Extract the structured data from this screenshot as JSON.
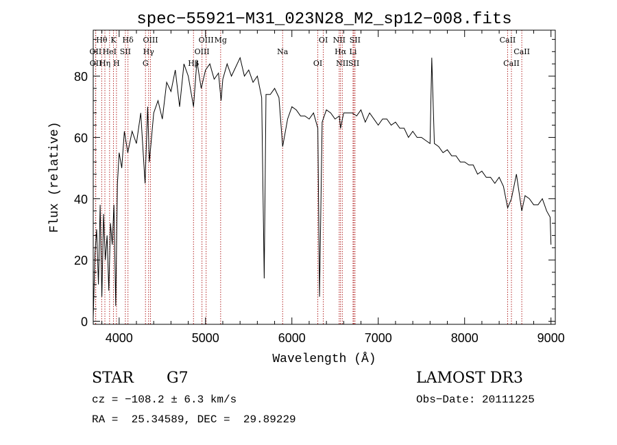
{
  "chart_data": {
    "type": "line",
    "title": "spec−55921−M31_023N28_M2_sp12−008.fits",
    "xlabel": "Wavelength (Å)",
    "ylabel": "Flux (relative)",
    "xlim": [
      3700,
      9050
    ],
    "ylim": [
      -1,
      95
    ],
    "xticks": [
      4000,
      5000,
      6000,
      7000,
      8000,
      9000
    ],
    "yticks": [
      0,
      20,
      40,
      60,
      80
    ],
    "series": [
      {
        "name": "spectrum",
        "color": "#000000",
        "x": [
          3700,
          3720,
          3740,
          3760,
          3780,
          3800,
          3820,
          3840,
          3860,
          3880,
          3900,
          3920,
          3940,
          3960,
          3980,
          4000,
          4030,
          4060,
          4100,
          4150,
          4200,
          4250,
          4300,
          4330,
          4350,
          4400,
          4450,
          4500,
          4550,
          4600,
          4650,
          4700,
          4750,
          4800,
          4861,
          4900,
          4950,
          5000,
          5050,
          5100,
          5150,
          5180,
          5200,
          5250,
          5300,
          5350,
          5400,
          5450,
          5500,
          5550,
          5600,
          5650,
          5680,
          5700,
          5750,
          5800,
          5850,
          5893,
          5950,
          6000,
          6050,
          6100,
          6150,
          6200,
          6250,
          6300,
          6320,
          6350,
          6400,
          6450,
          6500,
          6550,
          6563,
          6600,
          6650,
          6700,
          6750,
          6800,
          6850,
          6900,
          6950,
          7000,
          7050,
          7100,
          7150,
          7200,
          7250,
          7300,
          7350,
          7400,
          7450,
          7500,
          7550,
          7600,
          7620,
          7650,
          7700,
          7750,
          7800,
          7850,
          7900,
          7950,
          8000,
          8050,
          8100,
          8150,
          8200,
          8250,
          8300,
          8350,
          8400,
          8450,
          8498,
          8542,
          8600,
          8662,
          8700,
          8750,
          8800,
          8850,
          8900,
          8950,
          8990,
          9000
        ],
        "y": [
          1,
          22,
          30,
          12,
          38,
          8,
          35,
          20,
          28,
          10,
          32,
          25,
          38,
          5,
          45,
          55,
          50,
          62,
          55,
          62,
          58,
          68,
          45,
          70,
          52,
          68,
          72,
          66,
          78,
          75,
          82,
          70,
          84,
          80,
          70,
          85,
          76,
          82,
          84,
          79,
          81,
          72,
          79,
          84,
          80,
          83,
          86,
          80,
          82,
          78,
          80,
          73,
          14,
          74,
          74,
          76,
          73,
          57,
          66,
          70,
          69,
          67,
          67,
          66,
          68,
          63,
          8,
          65,
          69,
          68,
          66,
          67,
          63,
          68,
          68,
          68,
          67,
          69,
          65,
          68,
          66,
          64,
          66,
          66,
          64,
          65,
          63,
          63,
          60,
          62,
          60,
          60,
          59,
          58,
          86,
          58,
          57,
          55,
          56,
          54,
          54,
          52,
          52,
          51,
          51,
          48,
          49,
          47,
          47,
          45,
          47,
          44,
          37,
          40,
          48,
          36,
          41,
          40,
          38,
          38,
          40,
          36,
          34,
          25
        ]
      }
    ],
    "lines": [
      {
        "label": "Hθ",
        "wave": 3798
      },
      {
        "label": "OII",
        "wave": 3727
      },
      {
        "label": "OII",
        "wave": 3729
      },
      {
        "label": "K",
        "wave": 3934
      },
      {
        "label": "HeI",
        "wave": 3889
      },
      {
        "label": "Hη",
        "wave": 3835
      },
      {
        "label": "Hδ",
        "wave": 4102
      },
      {
        "label": "SII",
        "wave": 4072
      },
      {
        "label": "H",
        "wave": 3969
      },
      {
        "label": "OIII",
        "wave": 4363
      },
      {
        "label": "Hγ",
        "wave": 4341
      },
      {
        "label": "G",
        "wave": 4305
      },
      {
        "label": "OIII",
        "wave": 5007
      },
      {
        "label": "OIII",
        "wave": 4959
      },
      {
        "label": "Hβ",
        "wave": 4861
      },
      {
        "label": "Mg",
        "wave": 5175
      },
      {
        "label": "Na",
        "wave": 5893
      },
      {
        "label": "OI",
        "wave": 6300
      },
      {
        "label": "OI",
        "wave": 6364
      },
      {
        "label": "Hα",
        "wave": 6563
      },
      {
        "label": "SII",
        "wave": 6717
      },
      {
        "label": "NII",
        "wave": 6548
      },
      {
        "label": "Li",
        "wave": 6708
      },
      {
        "label": "NII",
        "wave": 6584
      },
      {
        "label": "SII",
        "wave": 6731
      },
      {
        "label": "CaII",
        "wave": 8662
      },
      {
        "label": "CaII",
        "wave": 8542
      },
      {
        "label": "CaII",
        "wave": 8498
      }
    ]
  },
  "info": {
    "obj_class": "STAR",
    "subclass": "G7",
    "survey": "LAMOST DR3",
    "cz": "cz = −108.2 ± 6.3 km/s",
    "obs_date": "Obs−Date: 20111225",
    "coords": "RA =  25.34589, DEC =  29.89229"
  }
}
